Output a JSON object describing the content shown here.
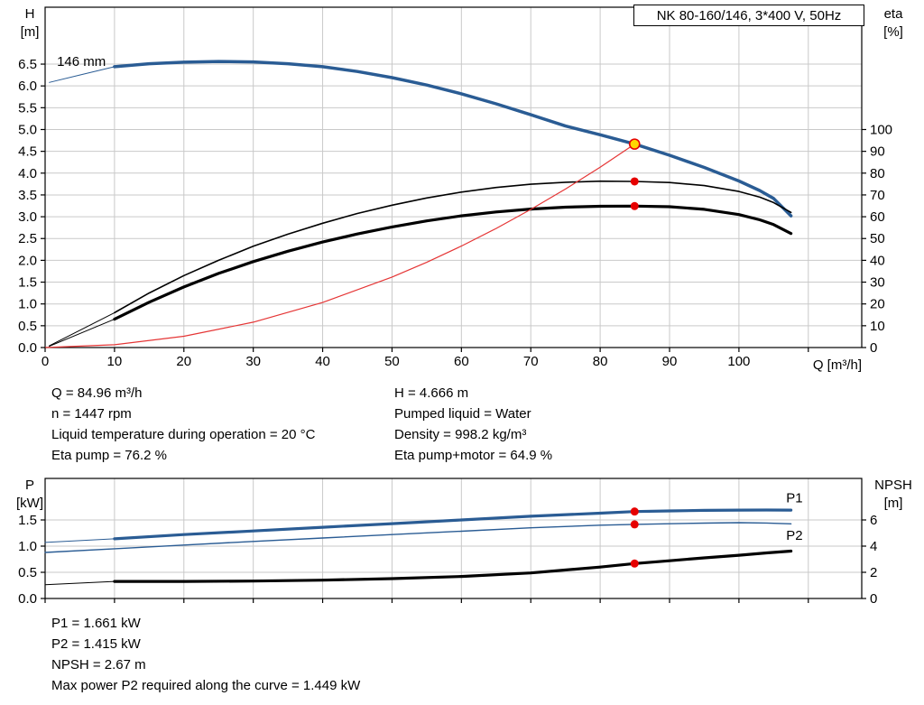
{
  "title_box": {
    "text": "NK 80-160/146, 3*400 V, 50Hz"
  },
  "info_top_left": [
    "Q = 84.96 m³/h",
    "n = 1447 rpm",
    "Liquid temperature during operation = 20 °C",
    "Eta pump = 76.2 %"
  ],
  "info_top_right": [
    "H = 4.666 m",
    "Pumped liquid = Water",
    "Density = 998.2 kg/m³",
    "Eta pump+motor = 64.9 %"
  ],
  "info_bottom": [
    "P1 = 1.661 kW",
    "P2 = 1.415 kW",
    "NPSH = 2.67 m",
    "Max power P2 required along the curve = 1.449 kW"
  ],
  "colors": {
    "curve_blue": "#2a5c94",
    "curve_black": "#000000",
    "curve_red": "#e53535",
    "dot_red": "#e60000",
    "duty_yellow": "#ffd800",
    "grid": "#c9c9c9",
    "frame": "#000000"
  },
  "chart_data": [
    {
      "type": "line",
      "name": "qh-eta-chart",
      "title": "NK 80-160/146, 3*400 V, 50Hz",
      "xlabel": "Q [m³/h]",
      "xlim": [
        0,
        117.7
      ],
      "x_ticks": [
        "0",
        "10",
        "20",
        "30",
        "40",
        "50",
        "60",
        "70",
        "80",
        "90",
        "100"
      ],
      "x_extra_grid": [
        110
      ],
      "left_axis_label": [
        "H",
        "[m]"
      ],
      "left_ylim": [
        0,
        7.805
      ],
      "left_ticks": [
        "0.0",
        "0.5",
        "1.0",
        "1.5",
        "2.0",
        "2.5",
        "3.0",
        "3.5",
        "4.0",
        "4.5",
        "5.0",
        "5.5",
        "6.0",
        "6.5"
      ],
      "right_axis_label": [
        "eta",
        "[%]"
      ],
      "right_ylim": [
        0,
        156.1
      ],
      "right_ticks": [
        "0",
        "10",
        "20",
        "30",
        "40",
        "50",
        "60",
        "70",
        "80",
        "90",
        "100"
      ],
      "series": [
        {
          "name": "h-curve-lead",
          "axis": "left",
          "color": "#2a5c94",
          "width": 1,
          "points": [
            [
              0.6,
              6.08
            ],
            [
              5,
              6.25
            ],
            [
              10,
              6.44
            ]
          ]
        },
        {
          "name": "h-curve-146mm",
          "axis": "left",
          "color": "#2a5c94",
          "width": 3.5,
          "points": [
            [
              10,
              6.44
            ],
            [
              15,
              6.51
            ],
            [
              20,
              6.545
            ],
            [
              25,
              6.56
            ],
            [
              30,
              6.55
            ],
            [
              35,
              6.51
            ],
            [
              40,
              6.44
            ],
            [
              45,
              6.33
            ],
            [
              50,
              6.19
            ],
            [
              55,
              6.02
            ],
            [
              60,
              5.82
            ],
            [
              65,
              5.59
            ],
            [
              70,
              5.34
            ],
            [
              75,
              5.08
            ],
            [
              80,
              4.88
            ],
            [
              84.96,
              4.666
            ],
            [
              90,
              4.41
            ],
            [
              95,
              4.13
            ],
            [
              100,
              3.82
            ],
            [
              103,
              3.6
            ],
            [
              105,
              3.42
            ],
            [
              107.5,
              3.02
            ]
          ]
        },
        {
          "name": "eta-pump-lead",
          "axis": "right",
          "color": "#000000",
          "width": 1,
          "points": [
            [
              0.6,
              0.8
            ],
            [
              10,
              16
            ]
          ]
        },
        {
          "name": "eta-pump-curve",
          "axis": "right",
          "color": "#000000",
          "width": 1.6,
          "points": [
            [
              10,
              16
            ],
            [
              15,
              25
            ],
            [
              20,
              33
            ],
            [
              25,
              40
            ],
            [
              30,
              46.5
            ],
            [
              35,
              52
            ],
            [
              40,
              57
            ],
            [
              45,
              61.5
            ],
            [
              50,
              65.3
            ],
            [
              55,
              68.6
            ],
            [
              60,
              71.3
            ],
            [
              65,
              73.4
            ],
            [
              70,
              74.9
            ],
            [
              75,
              75.8
            ],
            [
              80,
              76.3
            ],
            [
              84.96,
              76.2
            ],
            [
              90,
              75.7
            ],
            [
              95,
              74.3
            ],
            [
              100,
              71.6
            ],
            [
              103,
              69
            ],
            [
              105,
              66.5
            ],
            [
              107.5,
              62
            ]
          ]
        },
        {
          "name": "eta-pump-motor-lead",
          "axis": "right",
          "color": "#000000",
          "width": 1,
          "points": [
            [
              0.6,
              0.6
            ],
            [
              10,
              13
            ]
          ]
        },
        {
          "name": "eta-pump-motor-curve",
          "axis": "right",
          "color": "#000000",
          "width": 3.2,
          "points": [
            [
              10,
              13
            ],
            [
              15,
              20.8
            ],
            [
              20,
              27.8
            ],
            [
              25,
              34
            ],
            [
              30,
              39.4
            ],
            [
              35,
              44.2
            ],
            [
              40,
              48.4
            ],
            [
              45,
              52.1
            ],
            [
              50,
              55.3
            ],
            [
              55,
              58.1
            ],
            [
              60,
              60.4
            ],
            [
              65,
              62.2
            ],
            [
              70,
              63.5
            ],
            [
              75,
              64.4
            ],
            [
              80,
              64.8
            ],
            [
              84.96,
              64.9
            ],
            [
              90,
              64.6
            ],
            [
              95,
              63.4
            ],
            [
              100,
              61
            ],
            [
              103,
              58.6
            ],
            [
              105,
              56.4
            ],
            [
              107.5,
              52.3
            ]
          ]
        },
        {
          "name": "system-curve",
          "axis": "left",
          "color": "#e53535",
          "width": 1.2,
          "points": [
            [
              0,
              0
            ],
            [
              10,
              0.065
            ],
            [
              20,
              0.258
            ],
            [
              30,
              0.582
            ],
            [
              40,
              1.034
            ],
            [
              50,
              1.616
            ],
            [
              55,
              1.955
            ],
            [
              60,
              2.327
            ],
            [
              65,
              2.731
            ],
            [
              70,
              3.167
            ],
            [
              75,
              3.635
            ],
            [
              80,
              4.136
            ],
            [
              84.96,
              4.666
            ]
          ]
        }
      ],
      "markers": [
        {
          "name": "duty-point",
          "axis": "left",
          "x": 84.96,
          "y": 4.666,
          "r": 5.5,
          "fill": "#ffd800",
          "stroke": "#e60000"
        },
        {
          "name": "eta-pump-marker",
          "axis": "right",
          "x": 84.96,
          "y": 76.2,
          "r": 4.5,
          "fill": "#e60000"
        },
        {
          "name": "eta-pump-motor-marker",
          "axis": "right",
          "x": 84.96,
          "y": 64.9,
          "r": 4.5,
          "fill": "#e60000"
        }
      ],
      "annotations": [
        {
          "name": "impeller-size-label",
          "text": "146 mm",
          "axis": "left",
          "x": 1.7,
          "y": 6.46,
          "color": "#000000",
          "anchor": "start"
        }
      ]
    },
    {
      "type": "line",
      "name": "power-npsh-chart",
      "xlim": [
        0,
        117.7
      ],
      "x_ticks": [
        "0",
        "10",
        "20",
        "30",
        "40",
        "50",
        "60",
        "70",
        "80",
        "90",
        "100"
      ],
      "x_extra_grid": [
        110
      ],
      "x_labels_hidden": true,
      "left_axis_label": [
        "P",
        "[kW]"
      ],
      "left_ylim": [
        0,
        2.293
      ],
      "left_ticks": [
        "0.0",
        "0.5",
        "1.0",
        "1.5"
      ],
      "right_axis_label": [
        "NPSH",
        "[m]"
      ],
      "right_ylim": [
        0,
        9.172
      ],
      "right_ticks": [
        "0",
        "2",
        "4",
        "6"
      ],
      "series": [
        {
          "name": "p1-lead",
          "axis": "left",
          "color": "#2a5c94",
          "width": 1,
          "points": [
            [
              0,
              1.07
            ],
            [
              10,
              1.14
            ]
          ]
        },
        {
          "name": "p1-curve",
          "axis": "left",
          "color": "#2a5c94",
          "width": 3.2,
          "points": [
            [
              10,
              1.14
            ],
            [
              20,
              1.22
            ],
            [
              30,
              1.29
            ],
            [
              40,
              1.36
            ],
            [
              50,
              1.43
            ],
            [
              60,
              1.5
            ],
            [
              70,
              1.57
            ],
            [
              80,
              1.63
            ],
            [
              84.96,
              1.661
            ],
            [
              90,
              1.672
            ],
            [
              95,
              1.682
            ],
            [
              100,
              1.688
            ],
            [
              104,
              1.69
            ],
            [
              107.5,
              1.688
            ]
          ]
        },
        {
          "name": "p2-curve",
          "axis": "left",
          "color": "#2a5c94",
          "width": 1.4,
          "points": [
            [
              0,
              0.88
            ],
            [
              10,
              0.95
            ],
            [
              20,
              1.02
            ],
            [
              30,
              1.09
            ],
            [
              40,
              1.155
            ],
            [
              50,
              1.22
            ],
            [
              60,
              1.285
            ],
            [
              70,
              1.35
            ],
            [
              80,
              1.4
            ],
            [
              84.96,
              1.415
            ],
            [
              90,
              1.428
            ],
            [
              95,
              1.44
            ],
            [
              100,
              1.449
            ],
            [
              104,
              1.442
            ],
            [
              107.5,
              1.425
            ]
          ]
        },
        {
          "name": "npsh-lead",
          "axis": "right",
          "color": "#000000",
          "width": 1,
          "points": [
            [
              0,
              1.05
            ],
            [
              10,
              1.3
            ]
          ]
        },
        {
          "name": "npsh-curve",
          "axis": "right",
          "color": "#000000",
          "width": 3.2,
          "points": [
            [
              10,
              1.3
            ],
            [
              20,
              1.3
            ],
            [
              30,
              1.33
            ],
            [
              40,
              1.4
            ],
            [
              50,
              1.52
            ],
            [
              60,
              1.68
            ],
            [
              70,
              1.95
            ],
            [
              80,
              2.4
            ],
            [
              84.96,
              2.67
            ],
            [
              90,
              2.88
            ],
            [
              95,
              3.1
            ],
            [
              100,
              3.3
            ],
            [
              104,
              3.48
            ],
            [
              107.5,
              3.62
            ]
          ]
        }
      ],
      "markers": [
        {
          "name": "p1-marker",
          "axis": "left",
          "x": 84.96,
          "y": 1.661,
          "r": 4.5,
          "fill": "#e60000"
        },
        {
          "name": "p2-marker",
          "axis": "left",
          "x": 84.96,
          "y": 1.415,
          "r": 4.5,
          "fill": "#e60000"
        },
        {
          "name": "npsh-marker",
          "axis": "right",
          "x": 84.96,
          "y": 2.67,
          "r": 4.5,
          "fill": "#e60000"
        }
      ],
      "annotations": [
        {
          "name": "p1-label",
          "text": "P1",
          "axis": "left",
          "x": 106.8,
          "y": 1.84,
          "color": "#2a5c94",
          "anchor": "start"
        },
        {
          "name": "p2-label",
          "text": "P2",
          "axis": "left",
          "x": 106.8,
          "y": 1.12,
          "color": "#2a5c94",
          "anchor": "start"
        }
      ]
    }
  ]
}
